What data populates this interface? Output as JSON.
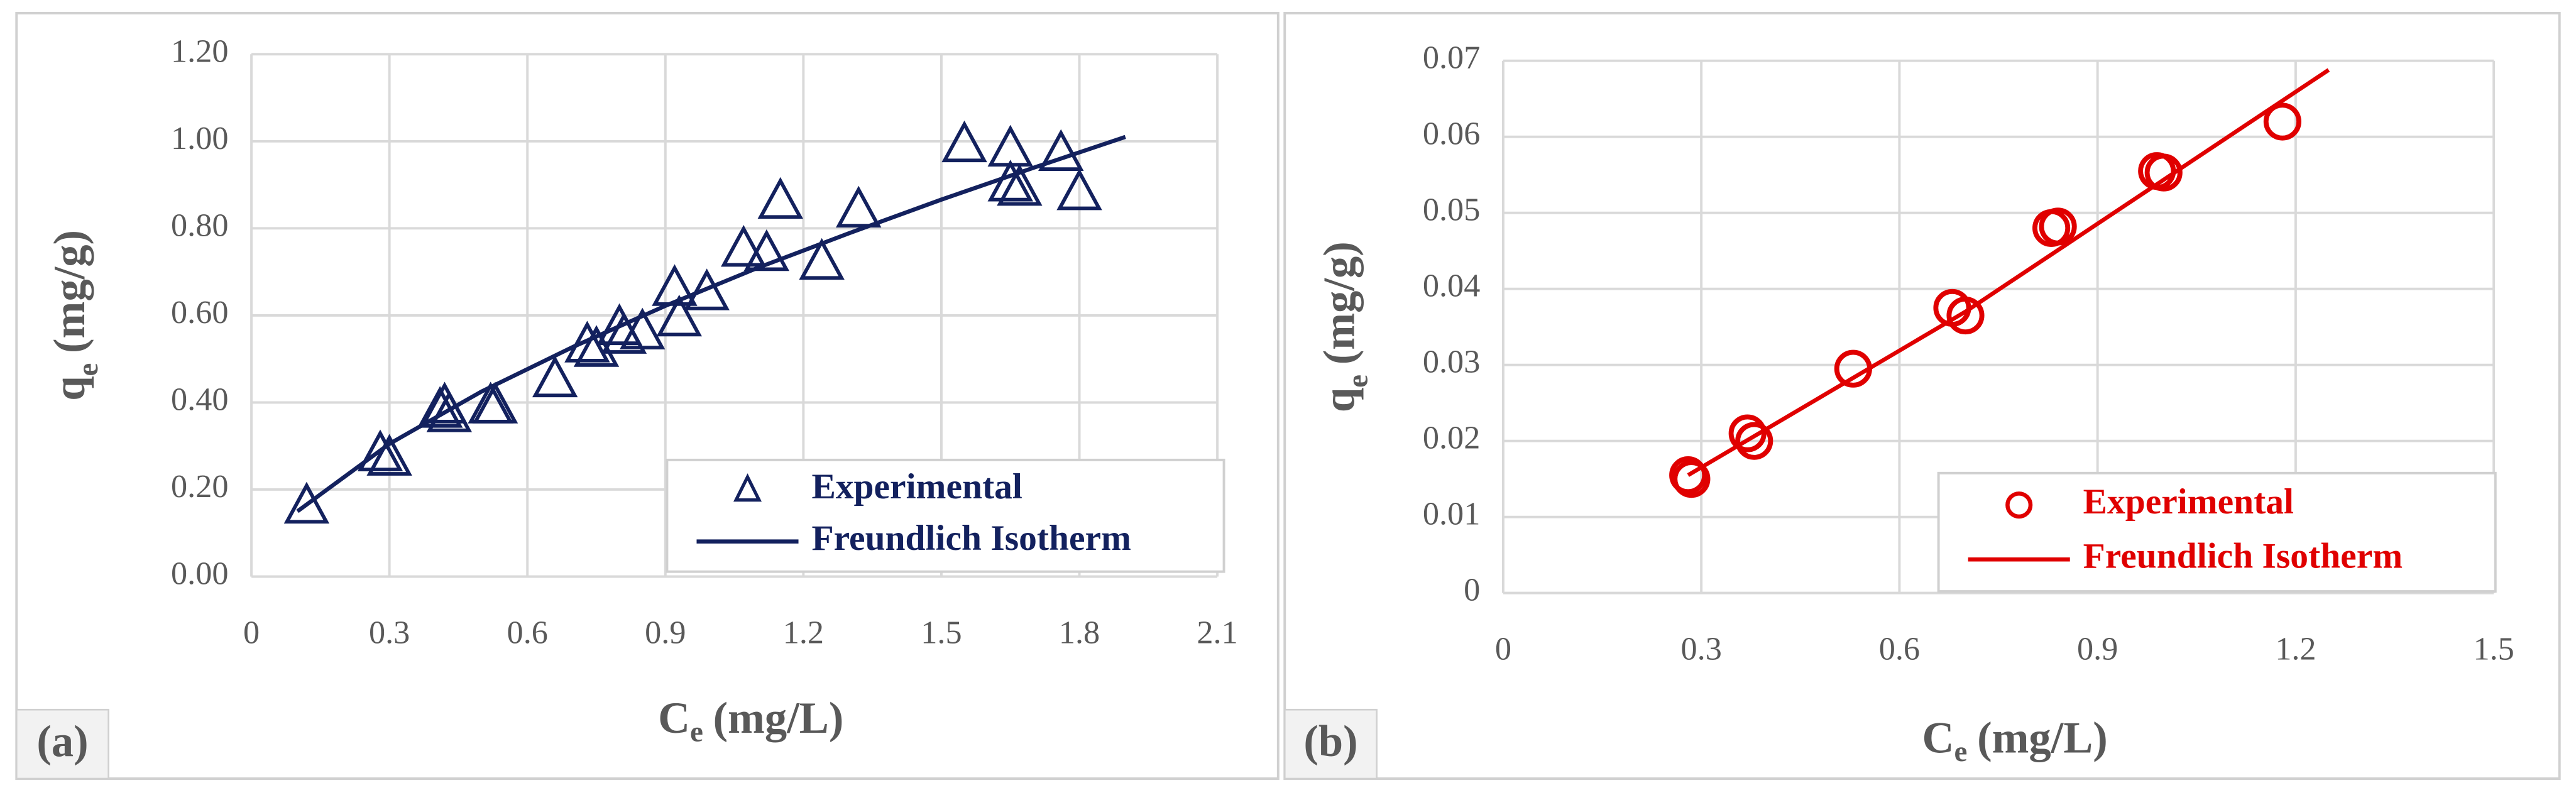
{
  "chart_data": [
    {
      "type": "scatter",
      "panel_label": "(a)",
      "xlabel": {
        "symbol": "C",
        "subscript": "e",
        "unit": "(mg/L)"
      },
      "ylabel": {
        "symbol": "q",
        "subscript": "e",
        "unit": "(mg/g)"
      },
      "xlim": [
        0,
        2.1
      ],
      "xticks": [
        0,
        0.3,
        0.6,
        0.9,
        1.2,
        1.5,
        1.8,
        2.1
      ],
      "ylim": [
        0,
        1.2
      ],
      "yticks": [
        {
          "value": 0,
          "label": "0.00"
        },
        {
          "value": 0.2,
          "label": "0.20"
        },
        {
          "value": 0.4,
          "label": "0.40"
        },
        {
          "value": 0.6,
          "label": "0.60"
        },
        {
          "value": 0.8,
          "label": "0.80"
        },
        {
          "value": 1.0,
          "label": "1.00"
        },
        {
          "value": 1.2,
          "label": "1.20"
        }
      ],
      "grid": true,
      "series": [
        {
          "name": "Experimental",
          "color": "#13215e",
          "marker": "triangle",
          "x": [
            0.12,
            0.28,
            0.3,
            0.41,
            0.42,
            0.43,
            0.52,
            0.53,
            0.66,
            0.73,
            0.75,
            0.8,
            0.81,
            0.85,
            0.92,
            0.93,
            0.99,
            1.07,
            1.12,
            1.15,
            1.24,
            1.32,
            1.55,
            1.65,
            1.65,
            1.67,
            1.76,
            1.8
          ],
          "values": [
            0.16,
            0.28,
            0.27,
            0.38,
            0.39,
            0.37,
            0.39,
            0.39,
            0.45,
            0.53,
            0.52,
            0.57,
            0.55,
            0.56,
            0.66,
            0.59,
            0.65,
            0.75,
            0.74,
            0.86,
            0.72,
            0.84,
            0.99,
            0.98,
            0.9,
            0.89,
            0.97,
            0.88
          ]
        },
        {
          "name": "Freundlich Isotherm",
          "color": "#13215e",
          "marker": "line",
          "x": [
            0.1,
            0.3,
            0.5,
            0.7,
            0.9,
            1.1,
            1.3,
            1.5,
            1.7,
            1.9
          ],
          "values": [
            0.15,
            0.305,
            0.425,
            0.528,
            0.622,
            0.709,
            0.789,
            0.866,
            0.939,
            1.01
          ]
        }
      ]
    },
    {
      "type": "scatter",
      "panel_label": "(b)",
      "xlabel": {
        "symbol": "C",
        "subscript": "e",
        "unit": "(mg/L)"
      },
      "ylabel": {
        "symbol": "q",
        "subscript": "e",
        "unit": "(mg/g)"
      },
      "xlim": [
        0,
        1.5
      ],
      "xticks": [
        0,
        0.3,
        0.6,
        0.9,
        1.2,
        1.5
      ],
      "ylim": [
        0,
        0.07
      ],
      "yticks": [
        0,
        0.01,
        0.02,
        0.03,
        0.04,
        0.05,
        0.06,
        0.07
      ],
      "grid": true,
      "series": [
        {
          "name": "Experimental",
          "color": "#e00000",
          "marker": "circle",
          "x": [
            0.28,
            0.285,
            0.37,
            0.38,
            0.53,
            0.68,
            0.7,
            0.83,
            0.84,
            0.99,
            1.0,
            1.18
          ],
          "values": [
            0.0155,
            0.015,
            0.021,
            0.02,
            0.0295,
            0.0375,
            0.0365,
            0.048,
            0.0482,
            0.0555,
            0.0553,
            0.062
          ]
        },
        {
          "name": "Freundlich Isotherm",
          "color": "#e00000",
          "marker": "line",
          "x": [
            0.28,
            0.7,
            1.25
          ],
          "values": [
            0.0155,
            0.037,
            0.0688
          ]
        }
      ]
    }
  ]
}
